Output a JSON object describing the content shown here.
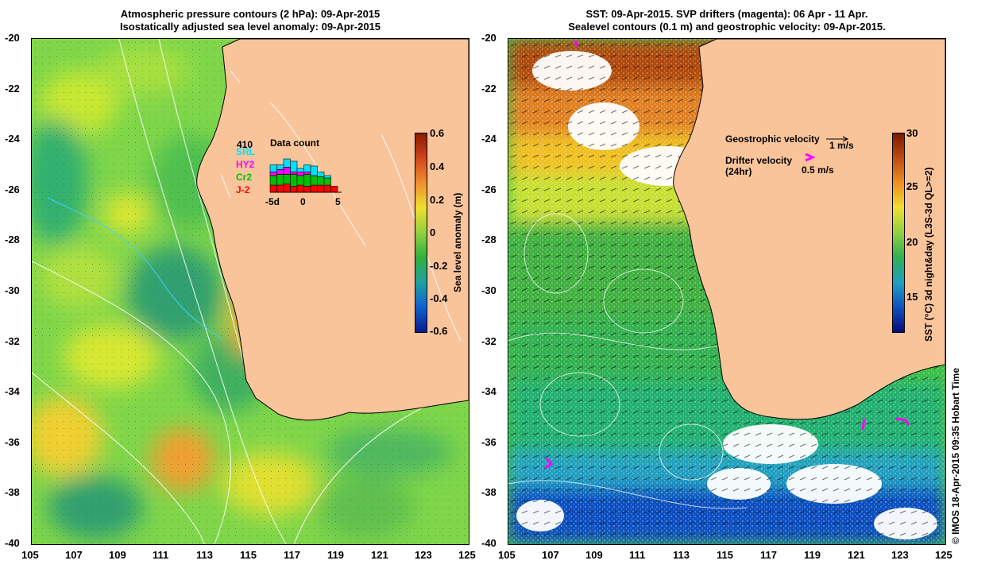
{
  "left_panel": {
    "title_line1": "Atmospheric pressure contours (2 hPa): 09-Apr-2015",
    "title_line2": "Isostatically adjusted sea level anomaly: 09-Apr-2015",
    "colorbar": {
      "label": "Sea level anomaly (m)",
      "ticks": [
        "0.6",
        "0.4",
        "0.2",
        "0",
        "-0.2",
        "-0.4",
        "-0.6"
      ]
    },
    "inset": {
      "title": "Data count",
      "max_label": "410",
      "satellites": [
        {
          "name": "SRL",
          "color": "#00e0ff"
        },
        {
          "name": "HY2",
          "color": "#ff00ff"
        },
        {
          "name": "Cr2",
          "color": "#00c000"
        },
        {
          "name": "J-2",
          "color": "#ff0000"
        }
      ],
      "x_ticks": [
        "-5d",
        "0",
        "5"
      ],
      "bars": [
        {
          "J-2": 6,
          "Cr2": 8,
          "HY2": 3,
          "SRL": 6
        },
        {
          "J-2": 6,
          "Cr2": 9,
          "HY2": 4,
          "SRL": 4
        },
        {
          "J-2": 7,
          "Cr2": 8,
          "HY2": 6,
          "SRL": 7
        },
        {
          "J-2": 5,
          "Cr2": 10,
          "HY2": 2,
          "SRL": 9
        },
        {
          "J-2": 6,
          "Cr2": 8,
          "HY2": 3,
          "SRL": 3
        },
        {
          "J-2": 5,
          "Cr2": 10,
          "HY2": 2,
          "SRL": 6
        },
        {
          "J-2": 6,
          "Cr2": 8,
          "HY2": 0,
          "SRL": 8
        },
        {
          "J-2": 6,
          "Cr2": 7,
          "HY2": 0,
          "SRL": 4
        },
        {
          "J-2": 6,
          "Cr2": 6,
          "HY2": 0,
          "SRL": 2
        },
        {
          "J-2": 5,
          "Cr2": 0,
          "HY2": 0,
          "SRL": 0
        }
      ]
    }
  },
  "right_panel": {
    "title_line1": "SST: 09-Apr-2015. SVP drifters (magenta): 06 Apr - 11 Apr.",
    "title_line2": "Sealevel contours (0.1 m) and geostrophic velocity: 09-Apr-2015.",
    "colorbar": {
      "label": "SST (°C) 3d night&day (L3S-3d QL>=2)",
      "ticks": [
        "30",
        "25",
        "20",
        "15"
      ]
    },
    "legend": {
      "geo_label": "Geostrophic velocity",
      "geo_value": "1 m/s",
      "drifter_label": "Drifter velocity",
      "drifter_sub": "(24hr)",
      "drifter_value": "0.5 m/s"
    }
  },
  "axes": {
    "x_ticks": [
      "105",
      "107",
      "109",
      "111",
      "113",
      "115",
      "117",
      "119",
      "121",
      "123",
      "125"
    ],
    "y_ticks": [
      "-20",
      "-22",
      "-24",
      "-26",
      "-28",
      "-30",
      "-32",
      "-34",
      "-36",
      "-38",
      "-40"
    ]
  },
  "credit": "© IMOS 18-Apr-2015 09:35 Hobart Time",
  "colors": {
    "land": "#f9c49a",
    "drifter": "#ff00ff"
  }
}
